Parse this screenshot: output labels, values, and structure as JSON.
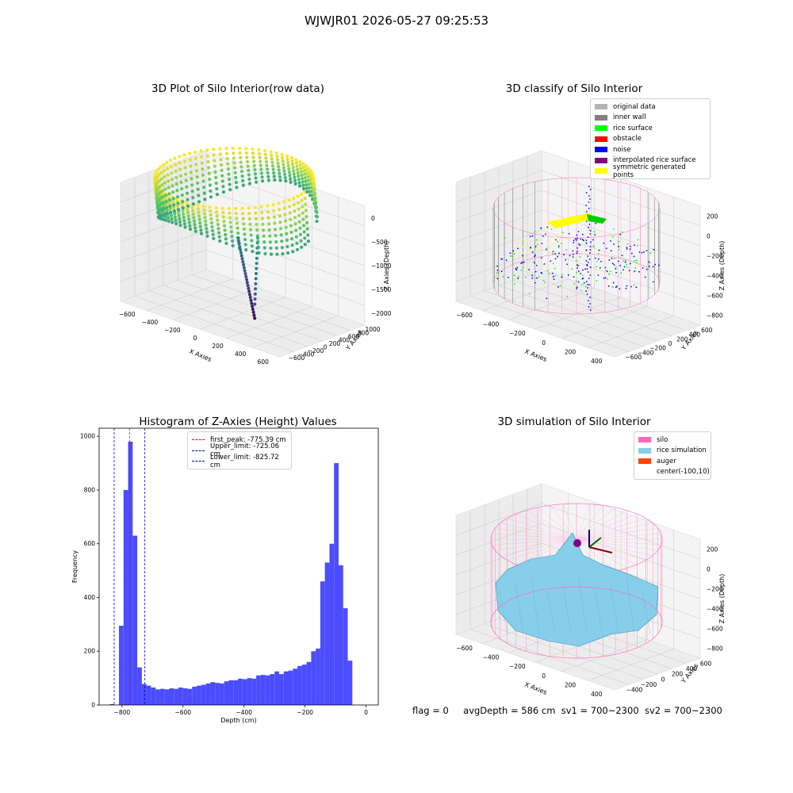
{
  "suptitle": "WJWJR01 2026-05-27 09:25:53",
  "colors": {
    "hist_bar": "#4c4cff",
    "first_peak_line": "#ff0000",
    "limit_lines": "#0000cc",
    "viridis_low": "#440154",
    "viridis_high": "#fde725",
    "grid": "#c8c8c8",
    "pane_fill": "#f2f2f2"
  },
  "panels": {
    "raw": {
      "title": "3D Plot of Silo Interior(row data)",
      "x_label": "X Axies",
      "y_label": "Y Axies",
      "z_label": "Z Axies (Depth)",
      "x_ticks": [
        "-600",
        "-400",
        "-200",
        "0",
        "200",
        "400",
        "600"
      ],
      "y_ticks": [
        "1000",
        "800",
        "600",
        "400",
        "200",
        "0",
        "-200",
        "-400",
        "-600"
      ],
      "z_ticks": [
        "0",
        "-500",
        "-1000",
        "-1500",
        "-2000"
      ],
      "colormap": "viridis"
    },
    "classify": {
      "title": "3D classify of Silo Interior",
      "x_label": "X Axies",
      "y_label": "Y Axies",
      "z_label": "Z Axies (Depth)",
      "x_ticks": [
        "-600",
        "-400",
        "-200",
        "0",
        "200",
        "400"
      ],
      "y_ticks": [
        "600",
        "400",
        "200",
        "0",
        "-200",
        "-400",
        "-600"
      ],
      "z_ticks": [
        "200",
        "0",
        "-200",
        "-400",
        "-600",
        "-800"
      ],
      "legend": [
        {
          "label": "original data",
          "color": "#b3b3b3"
        },
        {
          "label": "inner wall",
          "color": "#808080"
        },
        {
          "label": "rice surface",
          "color": "#00ff00"
        },
        {
          "label": "obstacle",
          "color": "#ff0000"
        },
        {
          "label": "noise",
          "color": "#0000ff"
        },
        {
          "label": "interpolated rice surface",
          "color": "#800080"
        },
        {
          "label": "symmetric generated points",
          "color": "#ffff00"
        }
      ]
    },
    "histogram": {
      "title": "Histogram of Z-Axies (Height) Values",
      "legend": [
        {
          "label": "first_peak: -775.39 cm",
          "color": "#ff0000"
        },
        {
          "label": "Upper_limit: -725.06 cm",
          "color": "#0000cc"
        },
        {
          "label": "Lower_limit: -825.72 cm",
          "color": "#0000cc"
        }
      ]
    },
    "simulation": {
      "title": "3D simulation of Silo Interior",
      "x_label": "X Axies",
      "y_label": "Y Axies",
      "z_label": "Z Axies (Depth)",
      "x_ticks": [
        "-600",
        "-400",
        "-200",
        "0",
        "200",
        "400"
      ],
      "y_ticks": [
        "600",
        "400",
        "200",
        "0",
        "-200",
        "-400"
      ],
      "z_ticks": [
        "200",
        "0",
        "-200",
        "-400",
        "-600",
        "-800"
      ],
      "legend": [
        {
          "label": "silo",
          "color": "#ff69b4"
        },
        {
          "label": "rice simulation",
          "color": "#87ceeb"
        },
        {
          "label": "auger",
          "color": "#ff4500"
        },
        {
          "label": "center(-100,10)",
          "color": "transparent"
        }
      ]
    }
  },
  "footer": {
    "flag": "flag = 0",
    "avg_depth": "avgDepth = 586 cm",
    "sv1": "sv1 = 700~2300",
    "sv2": "sv2 = 700~2300"
  },
  "chart_data": [
    {
      "type": "histogram",
      "title": "Histogram of Z-Axies (Height) Values",
      "xlabel": "Depth (cm)",
      "ylabel": "Frequency",
      "xlim": [
        -875,
        40
      ],
      "ylim": [
        0,
        1030
      ],
      "x_ticks": [
        -800,
        -600,
        -400,
        -200,
        0
      ],
      "y_ticks": [
        0,
        200,
        400,
        600,
        800,
        1000
      ],
      "bin_width": 15,
      "bins_start": [
        -840,
        -825,
        -810,
        -795,
        -780,
        -765,
        -750,
        -735,
        -720,
        -705,
        -690,
        -675,
        -660,
        -645,
        -630,
        -615,
        -600,
        -585,
        -570,
        -555,
        -540,
        -525,
        -510,
        -495,
        -480,
        -465,
        -450,
        -435,
        -420,
        -405,
        -390,
        -375,
        -360,
        -345,
        -330,
        -315,
        -300,
        -285,
        -270,
        -255,
        -240,
        -225,
        -210,
        -195,
        -180,
        -165,
        -150,
        -135,
        -120,
        -105,
        -90,
        -75,
        -60,
        -45,
        -30,
        -15
      ],
      "values": [
        3,
        0,
        295,
        800,
        980,
        630,
        140,
        78,
        72,
        65,
        58,
        60,
        58,
        62,
        60,
        65,
        62,
        60,
        68,
        72,
        75,
        80,
        85,
        82,
        80,
        88,
        92,
        92,
        98,
        96,
        100,
        98,
        110,
        112,
        110,
        115,
        125,
        115,
        125,
        128,
        135,
        145,
        150,
        160,
        200,
        210,
        460,
        530,
        600,
        900,
        520,
        360,
        165,
        0,
        0,
        0
      ],
      "series_name": "",
      "vlines": [
        {
          "label": "first_peak: -775.39 cm",
          "x": -775.39
        },
        {
          "label": "Upper_limit: -725.06 cm",
          "x": -725.06
        },
        {
          "label": "Lower_limit: -825.72 cm",
          "x": -825.72
        }
      ],
      "legend_position": "upper center"
    }
  ]
}
